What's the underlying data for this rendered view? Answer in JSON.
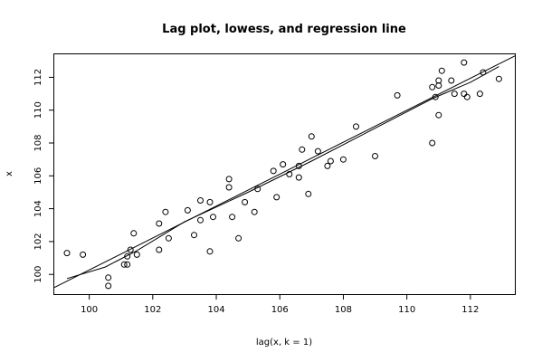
{
  "chart_data": {
    "type": "scatter",
    "title": "Lag plot, lowess, and regression line",
    "xlabel": "lag(x, k = 1)",
    "ylabel": "x",
    "xlim": [
      98.9,
      113.4
    ],
    "ylim": [
      98.8,
      113.4
    ],
    "grid": false,
    "x_ticks": [
      100,
      102,
      104,
      106,
      108,
      110,
      112
    ],
    "y_ticks": [
      100,
      102,
      104,
      106,
      108,
      110,
      112
    ],
    "points": [
      {
        "x": 99.3,
        "y": 101.3
      },
      {
        "x": 99.8,
        "y": 101.2
      },
      {
        "x": 100.6,
        "y": 99.8
      },
      {
        "x": 100.6,
        "y": 99.3
      },
      {
        "x": 101.1,
        "y": 100.6
      },
      {
        "x": 101.2,
        "y": 100.6
      },
      {
        "x": 101.2,
        "y": 101.1
      },
      {
        "x": 101.3,
        "y": 101.5
      },
      {
        "x": 101.4,
        "y": 102.5
      },
      {
        "x": 101.5,
        "y": 101.2
      },
      {
        "x": 102.2,
        "y": 103.1
      },
      {
        "x": 102.2,
        "y": 101.5
      },
      {
        "x": 102.4,
        "y": 103.8
      },
      {
        "x": 102.5,
        "y": 102.2
      },
      {
        "x": 103.1,
        "y": 103.9
      },
      {
        "x": 103.3,
        "y": 102.4
      },
      {
        "x": 103.5,
        "y": 103.3
      },
      {
        "x": 103.5,
        "y": 104.5
      },
      {
        "x": 103.8,
        "y": 104.4
      },
      {
        "x": 103.8,
        "y": 101.4
      },
      {
        "x": 103.9,
        "y": 103.5
      },
      {
        "x": 104.4,
        "y": 105.8
      },
      {
        "x": 104.4,
        "y": 105.3
      },
      {
        "x": 104.5,
        "y": 103.5
      },
      {
        "x": 104.7,
        "y": 102.2
      },
      {
        "x": 104.9,
        "y": 104.4
      },
      {
        "x": 105.2,
        "y": 103.8
      },
      {
        "x": 105.3,
        "y": 105.2
      },
      {
        "x": 105.8,
        "y": 106.3
      },
      {
        "x": 105.9,
        "y": 104.7
      },
      {
        "x": 106.1,
        "y": 106.7
      },
      {
        "x": 106.3,
        "y": 106.1
      },
      {
        "x": 106.6,
        "y": 106.6
      },
      {
        "x": 106.6,
        "y": 105.9
      },
      {
        "x": 106.7,
        "y": 107.6
      },
      {
        "x": 106.9,
        "y": 104.9
      },
      {
        "x": 107.0,
        "y": 108.4
      },
      {
        "x": 107.2,
        "y": 107.5
      },
      {
        "x": 107.5,
        "y": 106.6
      },
      {
        "x": 107.6,
        "y": 106.9
      },
      {
        "x": 108.0,
        "y": 107.0
      },
      {
        "x": 108.4,
        "y": 109.0
      },
      {
        "x": 109.0,
        "y": 107.2
      },
      {
        "x": 109.7,
        "y": 110.9
      },
      {
        "x": 110.8,
        "y": 111.4
      },
      {
        "x": 110.8,
        "y": 108.0
      },
      {
        "x": 110.9,
        "y": 110.8
      },
      {
        "x": 111.0,
        "y": 111.8
      },
      {
        "x": 111.0,
        "y": 111.5
      },
      {
        "x": 111.0,
        "y": 109.7
      },
      {
        "x": 111.1,
        "y": 112.4
      },
      {
        "x": 111.4,
        "y": 111.8
      },
      {
        "x": 111.5,
        "y": 111.0
      },
      {
        "x": 111.8,
        "y": 112.9
      },
      {
        "x": 111.8,
        "y": 111.0
      },
      {
        "x": 111.9,
        "y": 110.8
      },
      {
        "x": 112.3,
        "y": 111.0
      },
      {
        "x": 112.4,
        "y": 112.3
      },
      {
        "x": 112.9,
        "y": 111.9
      }
    ],
    "series": [
      {
        "type": "regression",
        "x": [
          98.9,
          113.4
        ],
        "y": [
          99.2,
          113.3
        ]
      },
      {
        "type": "lowess",
        "x": [
          99.3,
          100.5,
          101.5,
          103.0,
          105.0,
          107.0,
          109.0,
          110.8,
          112.0,
          112.9
        ],
        "y": [
          99.75,
          100.45,
          101.45,
          103.2,
          105.0,
          106.9,
          108.9,
          110.7,
          111.7,
          112.65
        ]
      }
    ]
  }
}
